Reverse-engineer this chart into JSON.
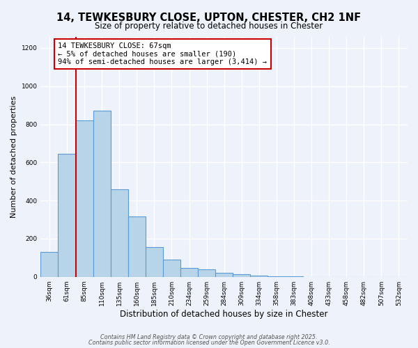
{
  "title_line1": "14, TEWKESBURY CLOSE, UPTON, CHESTER, CH2 1NF",
  "title_line2": "Size of property relative to detached houses in Chester",
  "xlabel": "Distribution of detached houses by size in Chester",
  "ylabel": "Number of detached properties",
  "categories": [
    "36sqm",
    "61sqm",
    "85sqm",
    "110sqm",
    "135sqm",
    "160sqm",
    "185sqm",
    "210sqm",
    "234sqm",
    "259sqm",
    "284sqm",
    "309sqm",
    "334sqm",
    "358sqm",
    "383sqm",
    "408sqm",
    "433sqm",
    "458sqm",
    "482sqm",
    "507sqm",
    "532sqm"
  ],
  "values": [
    130,
    645,
    820,
    870,
    460,
    315,
    155,
    90,
    48,
    38,
    20,
    13,
    8,
    3,
    1,
    0,
    0,
    0,
    0,
    0,
    0
  ],
  "bar_color": "#b8d4e8",
  "bar_edge_color": "#5b9bd5",
  "annotation_title": "14 TEWKESBURY CLOSE: 67sqm",
  "annotation_line2": "← 5% of detached houses are smaller (190)",
  "annotation_line3": "94% of semi-detached houses are larger (3,414) →",
  "annotation_box_color": "#ffffff",
  "annotation_box_edge_color": "#cc0000",
  "redline_color": "#cc0000",
  "ylim": [
    0,
    1260
  ],
  "yticks": [
    0,
    200,
    400,
    600,
    800,
    1000,
    1200
  ],
  "footer_line1": "Contains HM Land Registry data © Crown copyright and database right 2025.",
  "footer_line2": "Contains public sector information licensed under the Open Government Licence v3.0.",
  "background_color": "#eef2fa",
  "grid_color": "#ffffff",
  "title_fontsize": 10.5,
  "subtitle_fontsize": 8.5,
  "xlabel_fontsize": 8.5,
  "ylabel_fontsize": 8.0,
  "tick_fontsize": 6.5,
  "annotation_fontsize": 7.5,
  "footer_fontsize": 5.8
}
